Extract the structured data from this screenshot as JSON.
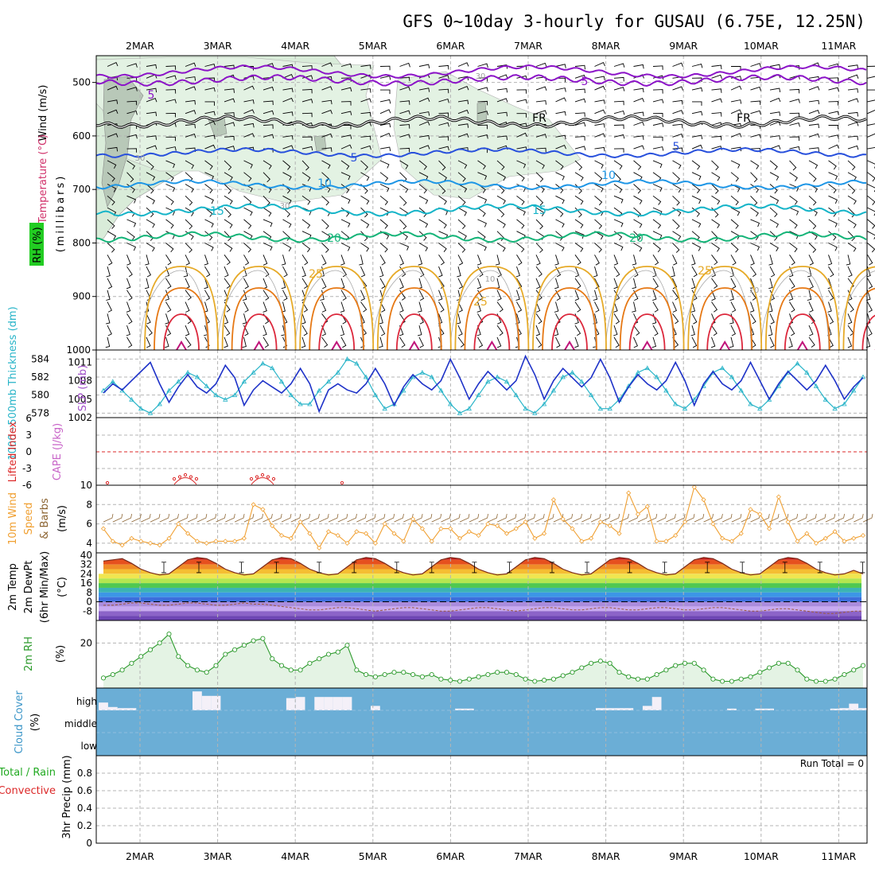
{
  "title": "GFS 0~10day 3-hourly for GUSAU (6.75E, 12.25N)",
  "dates": [
    "2MAR",
    "3MAR",
    "4MAR",
    "5MAR",
    "6MAR",
    "7MAR",
    "8MAR",
    "9MAR",
    "10MAR",
    "11MAR"
  ],
  "colors": {
    "wind_barb": "#000000",
    "temp_5_top": "#8c14c8",
    "freezing": "#000000",
    "temp_5": "#2850dc",
    "temp_10": "#1e96e6",
    "temp_15": "#14b4c8",
    "temp_20": "#14b478",
    "temp_25": "#e6aa28",
    "temp_30": "#e67814",
    "temp_35": "#dc283c",
    "rh_shade": "#d2ebd2",
    "slp": "#1e32c8",
    "thickness": "#28b4c8",
    "lifted": "#dc2828",
    "wind10": "#f0a032",
    "barb10": "#8c6432",
    "rh2m": "#2c9a2c",
    "cloud": "#6baed6"
  },
  "chart_data": [
    {
      "type": "heatmap",
      "panel": "upper-air cross-section",
      "ylabel_parts": {
        "wind": "Wind (m/s)",
        "temp": "Temperature (°C)",
        "rh": "RH (%)",
        "pressure": "(millibars)"
      },
      "yticks": [
        "500",
        "600",
        "700",
        "800",
        "900",
        "1000"
      ],
      "ylim": [
        450,
        1000
      ],
      "contour_labels": [
        {
          "text": "5",
          "level": "-5C"
        },
        {
          "text": "5",
          "level": "-5C"
        },
        {
          "text": "FR",
          "level": "0C"
        },
        {
          "text": "FR",
          "level": "0C"
        },
        {
          "text": "5",
          "level": "5C"
        },
        {
          "text": "5",
          "level": "5C"
        },
        {
          "text": "10",
          "level": "10C"
        },
        {
          "text": "10",
          "level": "10C"
        },
        {
          "text": "15",
          "level": "15C"
        },
        {
          "text": "15",
          "level": "15C"
        },
        {
          "text": "20",
          "level": "20C"
        },
        {
          "text": "20",
          "level": "20C"
        },
        {
          "text": "25",
          "level": "25C"
        },
        {
          "text": "25",
          "level": "25C"
        },
        {
          "text": "25",
          "level": "25C"
        },
        {
          "text": "30",
          "level": "RH 30%"
        },
        {
          "text": "30",
          "level": "RH 30%"
        },
        {
          "text": "30",
          "level": "RH 30%"
        },
        {
          "text": "10",
          "level": "RH 10%"
        },
        {
          "text": "10",
          "level": "RH 10%"
        }
      ]
    },
    {
      "type": "line",
      "panel": "thickness and SLP",
      "ylabel_left": "1000~500mb Thickness (dm)",
      "ylabel_right": "SLP (mb)",
      "yticks_left": [
        "584",
        "582",
        "580",
        "578"
      ],
      "yticks_right": [
        "1011",
        "1008",
        "1005",
        "1002"
      ],
      "series": [
        {
          "name": "SLP (mb)",
          "values": [
            1006.0,
            1007.5,
            1006.5,
            1008.0,
            1009.5,
            1011.0,
            1007.5,
            1004.5,
            1007.0,
            1009.0,
            1007.0,
            1006.0,
            1007.5,
            1010.5,
            1008.5,
            1004.0,
            1006.5,
            1008.0,
            1007.0,
            1006.0,
            1007.5,
            1010.0,
            1007.5,
            1003.0,
            1006.5,
            1007.5,
            1006.5,
            1006.0,
            1007.5,
            1010.0,
            1007.5,
            1004.0,
            1007.0,
            1009.0,
            1007.5,
            1006.5,
            1008.0,
            1011.5,
            1008.5,
            1005.0,
            1007.5,
            1009.5,
            1008.0,
            1006.5,
            1008.0,
            1012.0,
            1009.0,
            1005.0,
            1008.0,
            1010.0,
            1008.5,
            1007.0,
            1008.5,
            1011.5,
            1008.5,
            1004.5,
            1007.0,
            1009.0,
            1007.5,
            1006.5,
            1008.0,
            1011.0,
            1008.0,
            1004.0,
            1007.5,
            1009.5,
            1007.5,
            1006.5,
            1008.0,
            1011.0,
            1008.0,
            1005.0,
            1007.5,
            1009.5,
            1008.0,
            1006.5,
            1008.0,
            1010.5,
            1008.0,
            1005.0,
            1007.0,
            1008.5
          ]
        },
        {
          "name": "Thickness (dm)",
          "values": [
            580.5,
            581.5,
            580.5,
            579.5,
            578.5,
            578.0,
            579.0,
            580.5,
            581.5,
            582.5,
            582.0,
            581.0,
            580.0,
            579.5,
            580.0,
            581.5,
            582.5,
            583.5,
            583.0,
            581.5,
            580.0,
            579.0,
            579.0,
            580.5,
            581.5,
            582.5,
            584.0,
            583.5,
            582.0,
            580.0,
            578.5,
            579.0,
            580.5,
            582.0,
            582.5,
            582.0,
            580.5,
            579.0,
            578.0,
            578.5,
            580.0,
            581.5,
            582.0,
            581.5,
            580.0,
            578.5,
            578.0,
            579.0,
            580.5,
            582.0,
            582.5,
            581.5,
            580.0,
            578.5,
            578.5,
            579.5,
            581.0,
            582.5,
            583.0,
            582.0,
            580.5,
            579.0,
            578.5,
            579.5,
            581.0,
            582.5,
            583.0,
            582.0,
            580.5,
            579.0,
            578.5,
            579.5,
            581.0,
            582.5,
            583.5,
            582.5,
            581.0,
            579.5,
            578.5,
            579.0,
            580.5,
            582.0
          ]
        }
      ]
    },
    {
      "type": "line",
      "panel": "lifted index and CAPE",
      "ylabel_left": "Lifted Index",
      "ylabel_right": "CAPE (J/kg)",
      "yticks": [
        "-6",
        "-3",
        "0",
        "3",
        "6"
      ],
      "ylim": [
        -6,
        6
      ]
    },
    {
      "type": "line",
      "panel": "10m wind",
      "ylabel_parts": {
        "a": "10m Wind",
        "b": "Speed",
        "c": "& Barbs",
        "d": "(m/s)"
      },
      "yticks": [
        "10",
        "8",
        "6",
        "4"
      ],
      "ylim": [
        3,
        10
      ],
      "series": [
        {
          "name": "10m Wind Speed",
          "values": [
            5.5,
            4.2,
            3.8,
            4.5,
            4.2,
            4.0,
            3.8,
            4.5,
            6.0,
            5.0,
            4.2,
            4.0,
            4.2,
            4.2,
            4.2,
            4.5,
            8.0,
            7.5,
            5.8,
            4.8,
            4.5,
            6.2,
            5.0,
            3.5,
            5.2,
            4.8,
            4.0,
            5.2,
            5.0,
            4.0,
            6.0,
            5.0,
            4.2,
            6.5,
            5.5,
            4.2,
            5.5,
            5.5,
            4.5,
            5.2,
            4.8,
            6.0,
            5.8,
            5.0,
            5.5,
            6.2,
            4.5,
            5.0,
            8.5,
            6.5,
            5.5,
            4.2,
            4.5,
            6.2,
            5.8,
            5.0,
            9.2,
            7.0,
            7.8,
            4.2,
            4.2,
            4.8,
            6.2,
            9.8,
            8.5,
            6.0,
            4.5,
            4.2,
            5.0,
            7.5,
            7.0,
            5.5,
            8.8,
            6.2,
            4.2,
            5.0,
            4.0,
            4.5,
            5.2,
            4.2,
            4.5,
            4.8
          ]
        }
      ]
    },
    {
      "type": "area",
      "panel": "2m temperature and dew point",
      "ylabel_parts": {
        "a": "2m Temp",
        "b": "2m DewPt",
        "c": "(6hr Min/Max)",
        "d": "(°C)"
      },
      "yticks": [
        "40",
        "32",
        "24",
        "16",
        "8",
        "0",
        "-8"
      ],
      "ylim": [
        -16,
        42
      ],
      "series": [
        {
          "name": "2m Temp",
          "values": [
            35,
            36,
            37,
            33,
            28,
            25,
            23,
            24,
            30,
            36,
            38,
            37,
            33,
            28,
            25,
            23,
            24,
            30,
            36,
            38,
            37,
            33,
            28,
            25,
            23,
            24,
            30,
            36,
            38,
            37,
            33,
            28,
            25,
            23,
            24,
            30,
            36,
            38,
            37,
            33,
            28,
            25,
            23,
            24,
            30,
            36,
            38,
            37,
            33,
            28,
            25,
            23,
            24,
            30,
            36,
            38,
            37,
            33,
            28,
            25,
            23,
            24,
            30,
            36,
            38,
            37,
            33,
            28,
            25,
            23,
            24,
            30,
            36,
            38,
            37,
            33,
            28,
            25,
            23,
            24,
            27,
            24
          ]
        },
        {
          "name": "2m DewPt",
          "values": [
            -3,
            -3,
            -2,
            -1,
            -1,
            -2,
            -3,
            -3,
            -2,
            -1,
            -1,
            -2,
            -3,
            -3,
            -2,
            -1,
            -2,
            -2,
            -3,
            -4,
            -5,
            -6,
            -7,
            -7,
            -6,
            -5,
            -5,
            -6,
            -7,
            -8,
            -7,
            -6,
            -5,
            -5,
            -6,
            -7,
            -8,
            -8,
            -7,
            -6,
            -5,
            -5,
            -6,
            -7,
            -8,
            -7,
            -6,
            -5,
            -5,
            -6,
            -7,
            -7,
            -6,
            -5,
            -5,
            -6,
            -7,
            -7,
            -6,
            -5,
            -5,
            -6,
            -7,
            -7,
            -6,
            -5,
            -5,
            -6,
            -7,
            -8,
            -8,
            -7,
            -6,
            -6,
            -7,
            -8,
            -9,
            -10,
            -10,
            -9,
            -8,
            -8
          ]
        }
      ]
    },
    {
      "type": "line",
      "panel": "2m RH",
      "ylabel": "2m RH",
      "yunit": "(%)",
      "yticks": [
        "20"
      ],
      "ylim": [
        0,
        30
      ],
      "series": [
        {
          "name": "2m RH",
          "values": [
            4.5,
            6,
            8,
            11,
            14,
            17,
            20,
            24,
            14,
            10,
            8,
            7,
            10,
            15,
            17,
            19,
            21,
            22,
            13,
            10,
            8,
            8,
            11,
            13,
            15,
            16,
            19,
            8,
            6,
            5,
            6,
            7,
            7,
            6,
            5,
            6,
            4,
            3.5,
            3,
            4,
            5,
            6,
            7,
            7,
            6,
            4,
            3,
            3.5,
            4,
            5.5,
            7,
            9,
            11,
            12,
            11,
            7,
            5,
            4,
            4,
            6,
            8,
            10,
            11,
            11,
            8,
            4,
            3,
            3,
            4,
            5,
            7,
            9,
            11,
            11,
            8,
            4,
            3,
            3,
            4,
            6,
            8,
            10
          ]
        }
      ]
    },
    {
      "type": "bar",
      "panel": "cloud cover",
      "ylabel_parts": {
        "a": "Cloud Cover",
        "b": "(%)"
      },
      "levels": [
        "high",
        "middle",
        "low"
      ],
      "series": [
        {
          "name": "high cloud",
          "values": [
            0.35,
            0.15,
            0.1,
            0.1,
            0,
            0,
            0,
            0,
            0,
            0,
            0.85,
            0.65,
            0.65,
            0,
            0,
            0,
            0,
            0,
            0,
            0,
            0.55,
            0.6,
            0,
            0.6,
            0.6,
            0.6,
            0.6,
            0,
            0,
            0.2,
            0,
            0,
            0,
            0,
            0,
            0,
            0,
            0,
            0.08,
            0.08,
            0,
            0,
            0,
            0,
            0,
            0,
            0,
            0,
            0,
            0,
            0,
            0,
            0,
            0.1,
            0.1,
            0.1,
            0.1,
            0,
            0.2,
            0.6,
            0,
            0,
            0,
            0,
            0,
            0,
            0,
            0.08,
            0,
            0,
            0.08,
            0.08,
            0,
            0,
            0,
            0,
            0,
            0,
            0.08,
            0.1,
            0.3,
            0.1
          ]
        }
      ]
    },
    {
      "type": "bar",
      "panel": "3hr precipitation",
      "ylabel_parts": {
        "a": "Total / Rain",
        "b": "Convective",
        "c": "3hr Precip (mm)"
      },
      "run_total": "Run Total = 0",
      "yticks": [
        "0.8",
        "0.6",
        "0.4",
        "0.2",
        "0"
      ],
      "ylim": [
        0,
        1
      ]
    }
  ]
}
